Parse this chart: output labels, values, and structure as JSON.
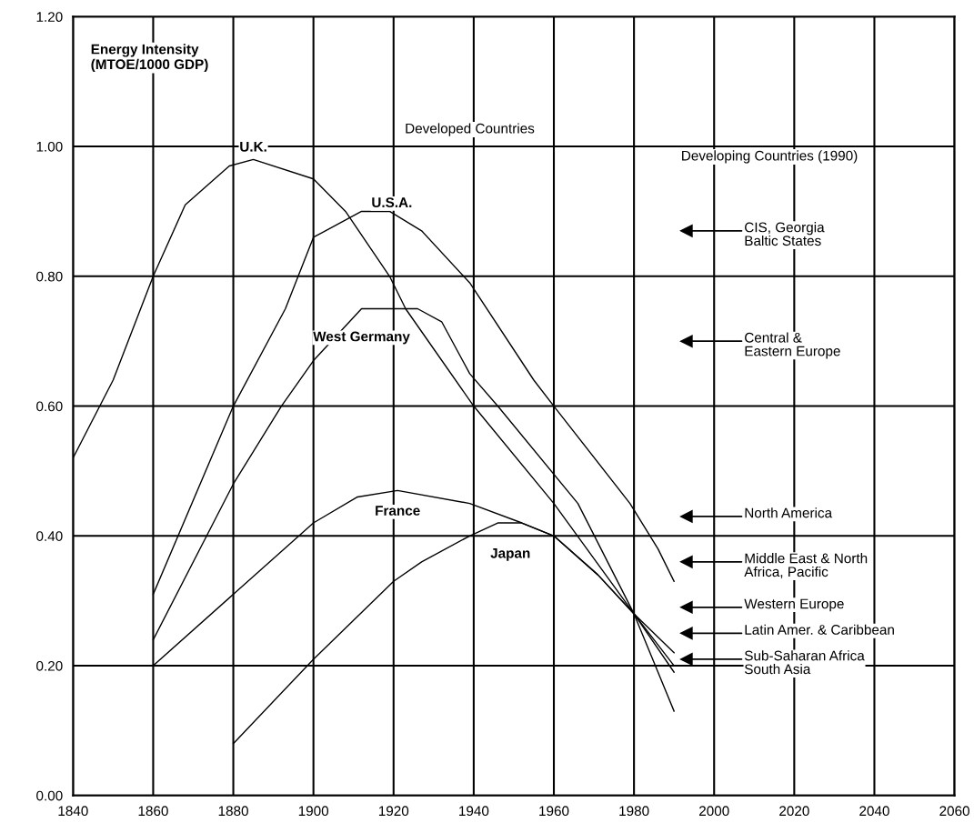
{
  "chart_data": {
    "type": "line",
    "ylabel": "Energy Intensity\n(MTOE/1000 GDP)",
    "xlim": [
      1840,
      2060
    ],
    "xticks": [
      1840,
      1860,
      1880,
      1900,
      1920,
      1940,
      1960,
      1980,
      2000,
      2020,
      2040,
      2060
    ],
    "ylim": [
      0,
      1.2
    ],
    "yticks": [
      {
        "value": 0,
        "label": "0.00"
      },
      {
        "value": 0.2,
        "label": "0.20"
      },
      {
        "value": 0.4,
        "label": "0.40"
      },
      {
        "value": 0.6,
        "label": "0.60"
      },
      {
        "value": 0.8,
        "label": "0.80"
      },
      {
        "value": 1.0,
        "label": "1.00"
      },
      {
        "value": 1.2,
        "label": "1.20"
      }
    ],
    "grid": true,
    "legend": false,
    "marker": "none",
    "line_style": "solid",
    "series": [
      {
        "name": "U.K.",
        "color": "#000000",
        "x": [
          1840,
          1850,
          1860,
          1868,
          1879,
          1885,
          1900,
          1908,
          1919,
          1923,
          1940,
          1960,
          1980,
          1990
        ],
        "values": [
          0.52,
          0.64,
          0.8,
          0.91,
          0.97,
          0.98,
          0.95,
          0.9,
          0.8,
          0.75,
          0.6,
          0.45,
          0.28,
          0.19
        ]
      },
      {
        "name": "U.S.A.",
        "color": "#000000",
        "x": [
          1860,
          1880,
          1893,
          1900,
          1912,
          1919,
          1927,
          1939,
          1955,
          1960,
          1979,
          1986,
          1990
        ],
        "values": [
          0.31,
          0.6,
          0.75,
          0.86,
          0.9,
          0.9,
          0.87,
          0.79,
          0.64,
          0.6,
          0.45,
          0.38,
          0.33
        ]
      },
      {
        "name": "West Germany",
        "color": "#000000",
        "x": [
          1860,
          1880,
          1892,
          1900,
          1912,
          1926,
          1932,
          1939,
          1946,
          1966,
          1980,
          1990
        ],
        "values": [
          0.24,
          0.48,
          0.6,
          0.67,
          0.75,
          0.75,
          0.73,
          0.65,
          0.6,
          0.45,
          0.28,
          0.13
        ]
      },
      {
        "name": "France",
        "color": "#000000",
        "x": [
          1860,
          1880,
          1900,
          1911,
          1921,
          1939,
          1952,
          1960,
          1971,
          1980,
          1990
        ],
        "values": [
          0.2,
          0.31,
          0.42,
          0.46,
          0.47,
          0.45,
          0.42,
          0.4,
          0.34,
          0.28,
          0.22
        ]
      },
      {
        "name": "Japan",
        "color": "#000000",
        "x": [
          1880,
          1900,
          1920,
          1927,
          1939,
          1946,
          1952,
          1960,
          1971,
          1980,
          1990
        ],
        "values": [
          0.08,
          0.21,
          0.33,
          0.36,
          0.4,
          0.42,
          0.42,
          0.4,
          0.34,
          0.28,
          0.2
        ]
      },
      {
        "type": "scatter",
        "marker": "triangle",
        "color": "#000000",
        "x": [
          1993,
          1993,
          1993,
          1993,
          1993,
          1993,
          1993
        ],
        "values": [
          0.87,
          0.7,
          0.43,
          0.36,
          0.29,
          0.25,
          0.21
        ]
      }
    ],
    "annotations": [
      "Developed Countries",
      "Developing Countries (1990)",
      "CIS, Georgia\nBaltic States",
      "Central &\nEastern Europe",
      "North America",
      "Middle East & North\nAfrica, Pacific",
      "Western Europe",
      "Latin Amer. & Caribbean",
      "Sub-Saharan Africa\nSouth Asia"
    ]
  }
}
